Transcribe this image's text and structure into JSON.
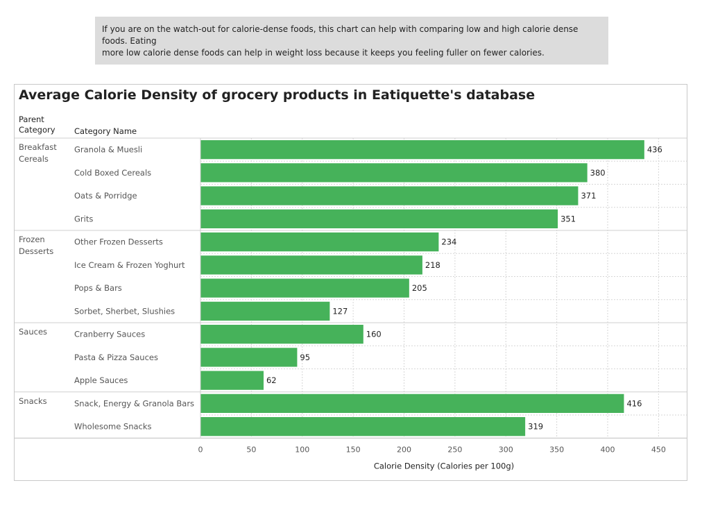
{
  "note": {
    "line1": "If you are on the watch-out for calorie-dense foods, this chart can help with comparing low and high calorie dense foods. Eating",
    "line2": "more low calorie dense foods can help in weight loss because it keeps you feeling fuller on fewer calories."
  },
  "headers": {
    "parent_line1": "Parent",
    "parent_line2": "Category",
    "category": "Category Name"
  },
  "chart_data": {
    "type": "bar",
    "orientation": "horizontal",
    "title": "Average Calorie Density of grocery products in Eatiquette's database",
    "xlabel": "Calorie Density (Calories per 100g)",
    "xlim": [
      0,
      475
    ],
    "xticks": [
      0,
      50,
      100,
      150,
      200,
      250,
      300,
      350,
      400,
      450
    ],
    "grid": true,
    "bar_color": "#46b25a",
    "groups": [
      {
        "name": [
          "Breakfast",
          "Cereals"
        ],
        "categories": [
          "Granola & Muesli",
          "Cold Boxed Cereals",
          "Oats & Porridge",
          "Grits"
        ],
        "values": [
          436,
          380,
          371,
          351
        ]
      },
      {
        "name": [
          "Frozen",
          "Desserts"
        ],
        "categories": [
          "Other Frozen Desserts",
          "Ice Cream & Frozen Yoghurt",
          "Pops & Bars",
          "Sorbet, Sherbet, Slushies"
        ],
        "values": [
          234,
          218,
          205,
          127
        ]
      },
      {
        "name": [
          "Sauces"
        ],
        "categories": [
          "Cranberry Sauces",
          "Pasta & Pizza Sauces",
          "Apple Sauces"
        ],
        "values": [
          160,
          95,
          62
        ]
      },
      {
        "name": [
          "Snacks"
        ],
        "categories": [
          "Snack, Energy & Granola Bars",
          "Wholesome Snacks"
        ],
        "values": [
          416,
          319
        ]
      }
    ]
  }
}
